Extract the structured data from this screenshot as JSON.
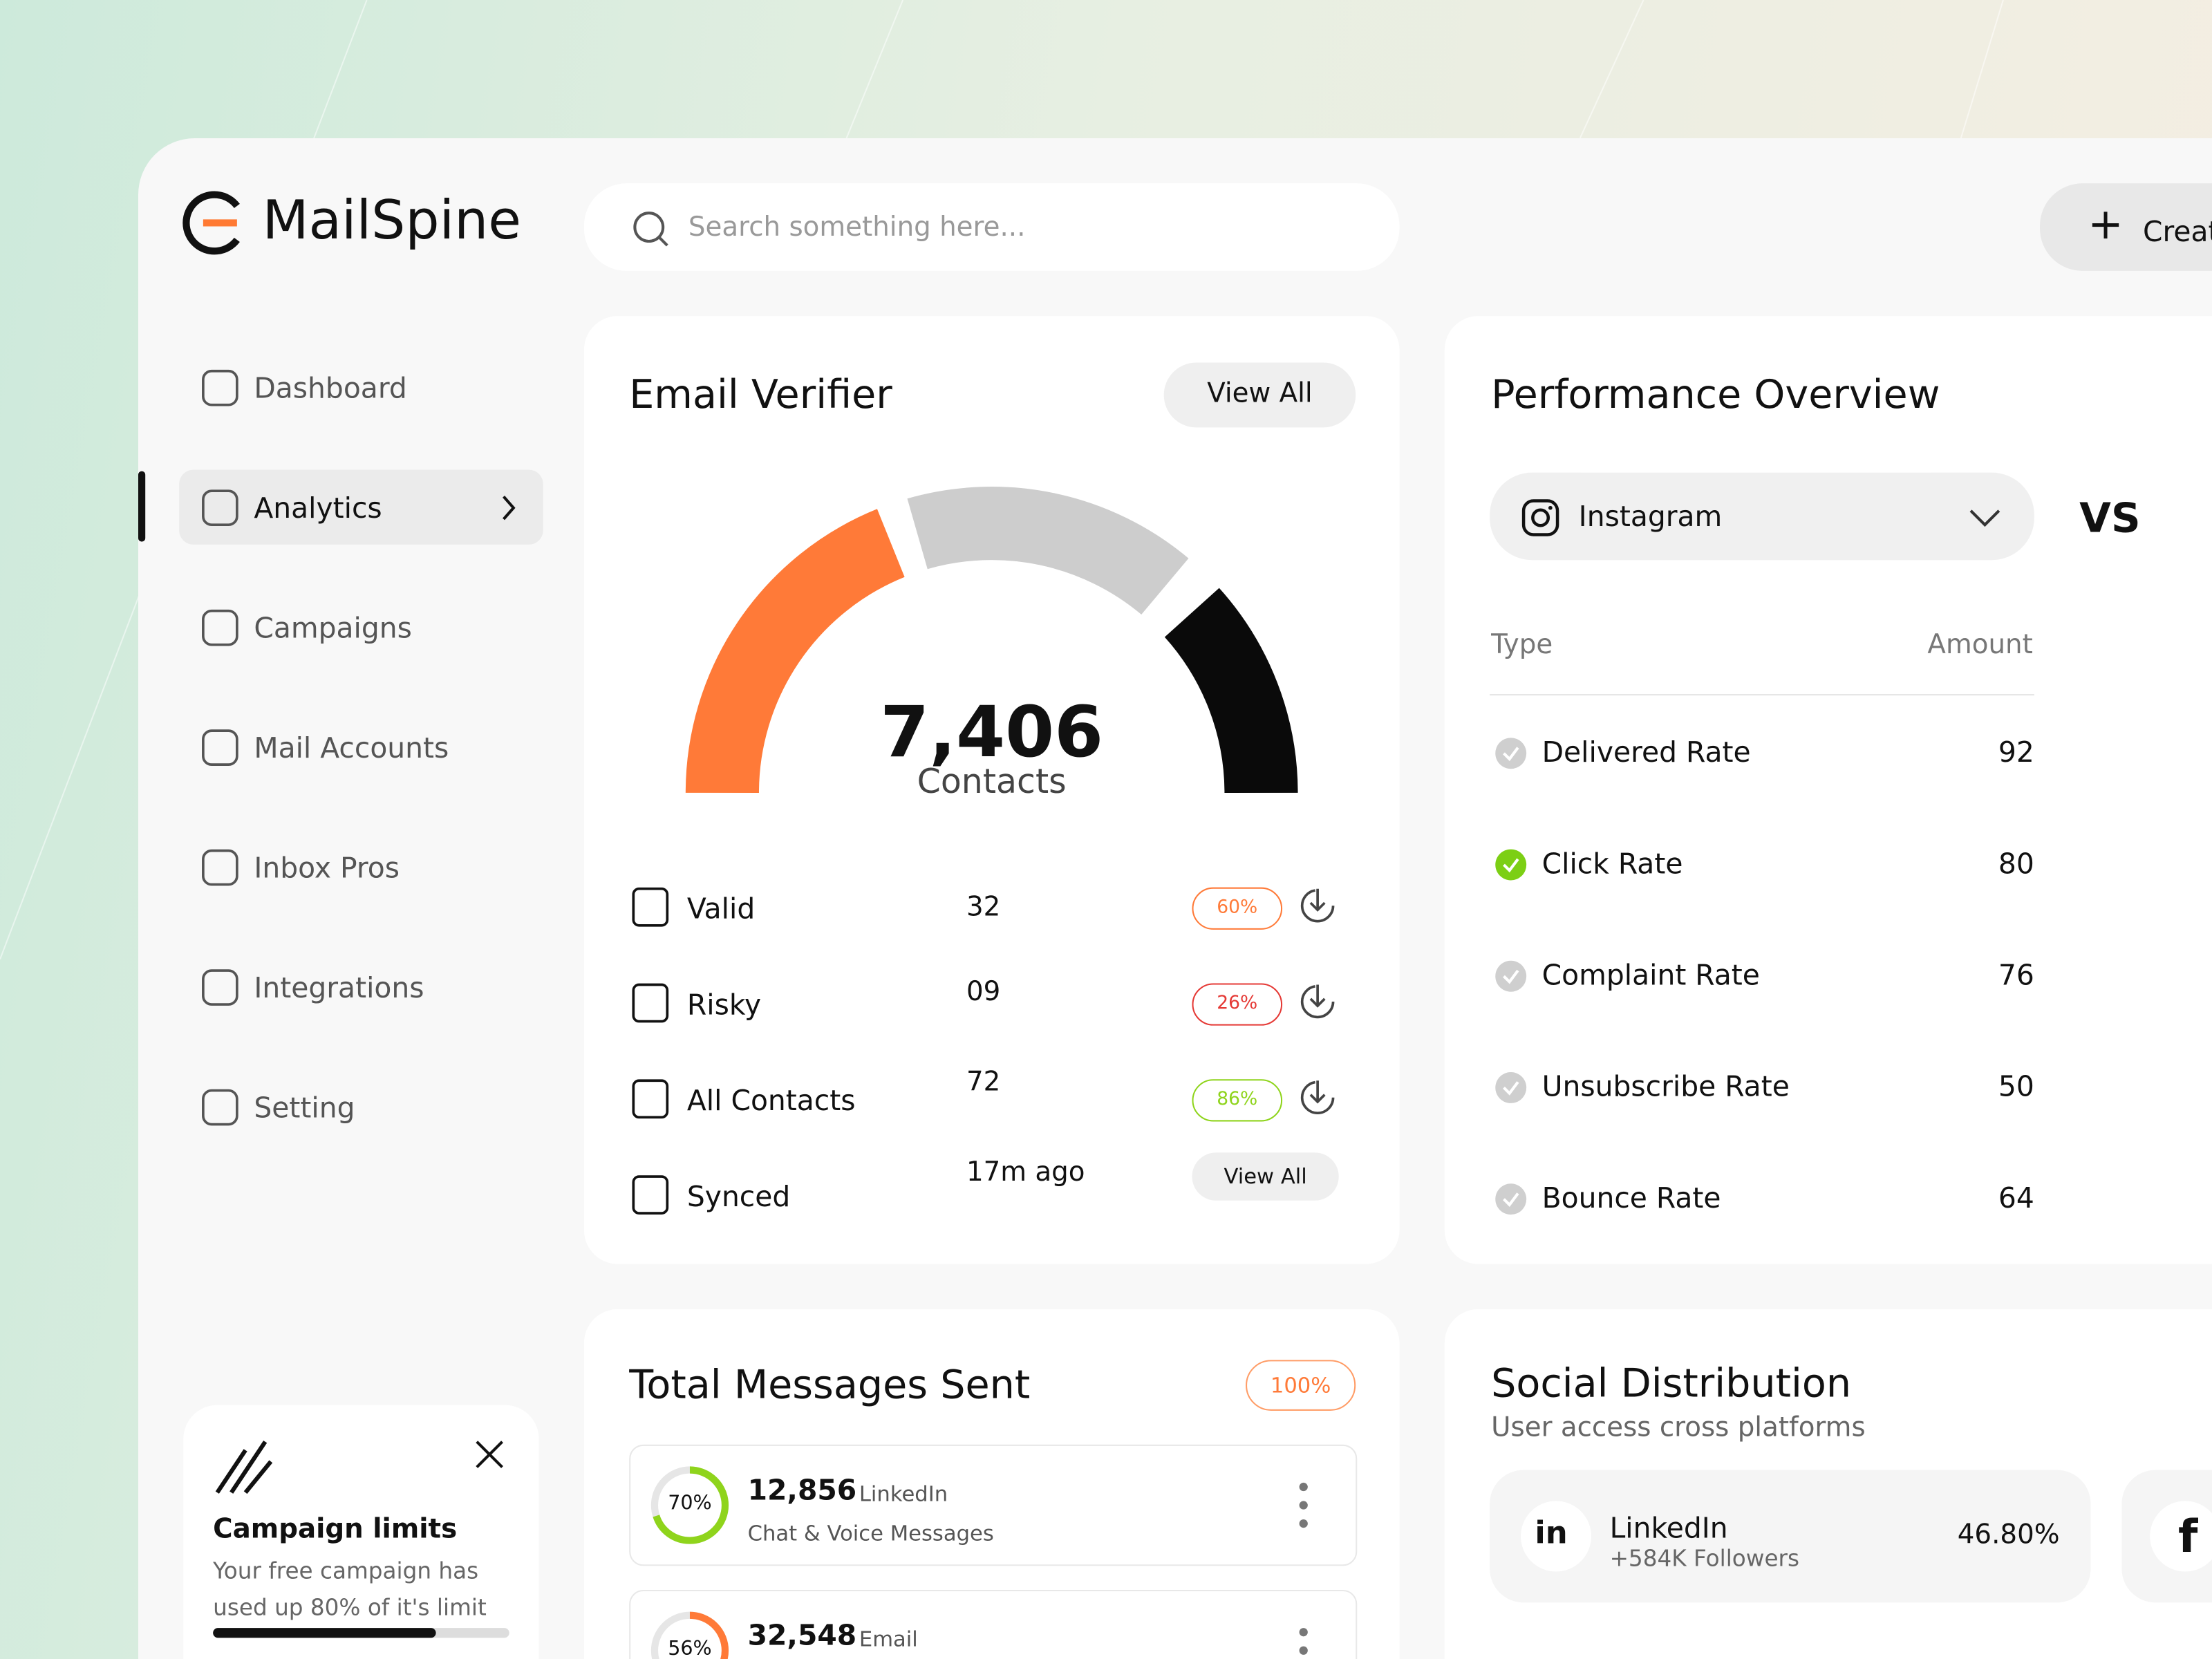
{
  "brand": "MailSpine",
  "search_placeholder": "Search something here...",
  "create_button": "Create",
  "nav": [
    "Dashboard",
    "Analytics",
    "Campaigns",
    "Mail Accounts",
    "Inbox Pros",
    "Integrations",
    "Setting"
  ],
  "campaign_card": {
    "title": "Campaign limits",
    "text": "Your free campaign has used up 80% of it's limit"
  },
  "email_verifier": {
    "title": "Email Verifier",
    "view_all": "View All",
    "total": "7,406",
    "total_label": "Contacts",
    "rows": [
      {
        "label": "Valid",
        "value": "32",
        "percent": "60%"
      },
      {
        "label": "Risky",
        "value": "09",
        "percent": "26%"
      },
      {
        "label": "All Contacts",
        "value": "72",
        "percent": "86%"
      },
      {
        "label": "Synced",
        "value": "17m ago",
        "action": "View All"
      }
    ]
  },
  "performance": {
    "title": "Performance Overview",
    "platform": "Instagram",
    "vs": "VS",
    "columns": [
      "Type",
      "Amount"
    ],
    "rows": [
      {
        "name": "Delivered Rate",
        "amount": 92
      },
      {
        "name": "Click Rate",
        "amount": 80
      },
      {
        "name": "Complaint Rate",
        "amount": 76
      },
      {
        "name": "Unsubscribe Rate",
        "amount": 50
      },
      {
        "name": "Bounce Rate",
        "amount": 64
      }
    ]
  },
  "total_messages": {
    "title": "Total Messages Sent",
    "badge": "100%",
    "items": [
      {
        "percent": 70,
        "label": "70%",
        "count": "12,856",
        "source": "LinkedIn",
        "description": "Chat & Voice Messages"
      },
      {
        "percent": 56,
        "label": "56%",
        "count": "32,548",
        "source": "Email"
      }
    ]
  },
  "social": {
    "title": "Social Distribution",
    "subtitle": "User access cross platforms",
    "items": [
      {
        "name": "LinkedIn",
        "followers": "+584K Followers",
        "share": "46.80%"
      }
    ]
  }
}
